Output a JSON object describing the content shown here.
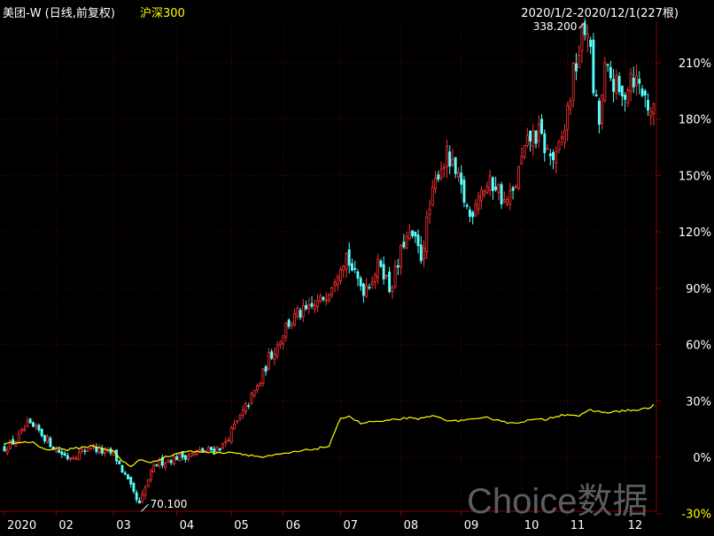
{
  "header": {
    "stock": "美团-W (日线,前复权)",
    "benchmark": "沪深300",
    "range": "2020/1/2-2020/12/1(227根)"
  },
  "watermark": "Choice数据",
  "chart_data": {
    "type": "line",
    "title": "",
    "xlabel": "",
    "ylabel": "",
    "ylim": [
      -30,
      240
    ],
    "y_ticks": [
      210,
      180,
      150,
      120,
      90,
      60,
      30,
      0,
      -30
    ],
    "y_tick_labels": [
      "210%",
      "180%",
      "150%",
      "120%",
      "90%",
      "60%",
      "30%",
      "0%",
      "-30%"
    ],
    "grid": true,
    "legend": "none",
    "months": [
      {
        "label": "2020",
        "day": 0
      },
      {
        "label": "02",
        "day": 18
      },
      {
        "label": "03",
        "day": 38
      },
      {
        "label": "04",
        "day": 60
      },
      {
        "label": "05",
        "day": 79
      },
      {
        "label": "06",
        "day": 97
      },
      {
        "label": "07",
        "day": 117
      },
      {
        "label": "08",
        "day": 138
      },
      {
        "label": "09",
        "day": 159
      },
      {
        "label": "10",
        "day": 180
      },
      {
        "label": "11",
        "day": 196
      },
      {
        "label": "12",
        "day": 216
      }
    ],
    "stock_anchors": [
      [
        0,
        5
      ],
      [
        4,
        9
      ],
      [
        8,
        17
      ],
      [
        12,
        14
      ],
      [
        18,
        4
      ],
      [
        22,
        0
      ],
      [
        26,
        2
      ],
      [
        30,
        6
      ],
      [
        34,
        3
      ],
      [
        38,
        2
      ],
      [
        42,
        -10
      ],
      [
        45,
        -20
      ],
      [
        47,
        -26
      ],
      [
        50,
        -12
      ],
      [
        53,
        -3
      ],
      [
        56,
        -2
      ],
      [
        60,
        0
      ],
      [
        64,
        1
      ],
      [
        68,
        3
      ],
      [
        72,
        4
      ],
      [
        76,
        6
      ],
      [
        79,
        14
      ],
      [
        82,
        21
      ],
      [
        86,
        32
      ],
      [
        89,
        40
      ],
      [
        92,
        53
      ],
      [
        95,
        60
      ],
      [
        98,
        70
      ],
      [
        102,
        76
      ],
      [
        106,
        78
      ],
      [
        110,
        83
      ],
      [
        113,
        90
      ],
      [
        117,
        104
      ],
      [
        119,
        108
      ],
      [
        122,
        96
      ],
      [
        125,
        90
      ],
      [
        128,
        96
      ],
      [
        131,
        104
      ],
      [
        134,
        90
      ],
      [
        137,
        102
      ],
      [
        139,
        115
      ],
      [
        142,
        117
      ],
      [
        145,
        107
      ],
      [
        148,
        132
      ],
      [
        151,
        153
      ],
      [
        154,
        160
      ],
      [
        157,
        150
      ],
      [
        159,
        142
      ],
      [
        162,
        128
      ],
      [
        165,
        142
      ],
      [
        168,
        144
      ],
      [
        171,
        146
      ],
      [
        174,
        135
      ],
      [
        177,
        140
      ],
      [
        180,
        158
      ],
      [
        183,
        170
      ],
      [
        186,
        172
      ],
      [
        189,
        162
      ],
      [
        192,
        158
      ],
      [
        195,
        175
      ],
      [
        198,
        203
      ],
      [
        201,
        223
      ],
      [
        203,
        230
      ],
      [
        205,
        196
      ],
      [
        207,
        178
      ],
      [
        209,
        205
      ],
      [
        212,
        200
      ],
      [
        215,
        190
      ],
      [
        218,
        205
      ],
      [
        221,
        198
      ],
      [
        224,
        188
      ],
      [
        226,
        183
      ]
    ],
    "index_anchors": [
      [
        0,
        7
      ],
      [
        6,
        8
      ],
      [
        10,
        8
      ],
      [
        14,
        4
      ],
      [
        18,
        5
      ],
      [
        22,
        4
      ],
      [
        26,
        5
      ],
      [
        30,
        6
      ],
      [
        34,
        5
      ],
      [
        38,
        3
      ],
      [
        41,
        -2
      ],
      [
        44,
        -5
      ],
      [
        47,
        -1
      ],
      [
        50,
        -3
      ],
      [
        54,
        -1
      ],
      [
        58,
        1
      ],
      [
        62,
        3
      ],
      [
        66,
        3
      ],
      [
        70,
        3
      ],
      [
        74,
        2
      ],
      [
        78,
        3
      ],
      [
        82,
        2
      ],
      [
        86,
        1
      ],
      [
        90,
        0
      ],
      [
        94,
        1
      ],
      [
        98,
        2
      ],
      [
        102,
        3
      ],
      [
        106,
        4
      ],
      [
        110,
        5
      ],
      [
        113,
        6
      ],
      [
        115,
        13
      ],
      [
        117,
        21
      ],
      [
        120,
        22
      ],
      [
        124,
        18
      ],
      [
        128,
        19
      ],
      [
        132,
        19
      ],
      [
        136,
        20
      ],
      [
        140,
        21
      ],
      [
        144,
        20
      ],
      [
        148,
        22
      ],
      [
        152,
        21
      ],
      [
        156,
        19
      ],
      [
        160,
        20
      ],
      [
        164,
        20
      ],
      [
        168,
        21
      ],
      [
        172,
        20
      ],
      [
        176,
        18
      ],
      [
        180,
        19
      ],
      [
        184,
        20
      ],
      [
        188,
        20
      ],
      [
        192,
        22
      ],
      [
        196,
        23
      ],
      [
        200,
        22
      ],
      [
        204,
        25
      ],
      [
        208,
        24
      ],
      [
        212,
        24
      ],
      [
        216,
        25
      ],
      [
        220,
        25
      ],
      [
        224,
        26
      ],
      [
        226,
        28
      ]
    ],
    "max_marker": {
      "label": "338.200",
      "day": 203,
      "pct": 233
    },
    "min_marker": {
      "label": "70.100",
      "day": 47,
      "pct": -26
    },
    "colors": {
      "up": "#ff3232",
      "down": "#54ffff",
      "index": "#ffff00",
      "grid": "#6a0000"
    }
  }
}
